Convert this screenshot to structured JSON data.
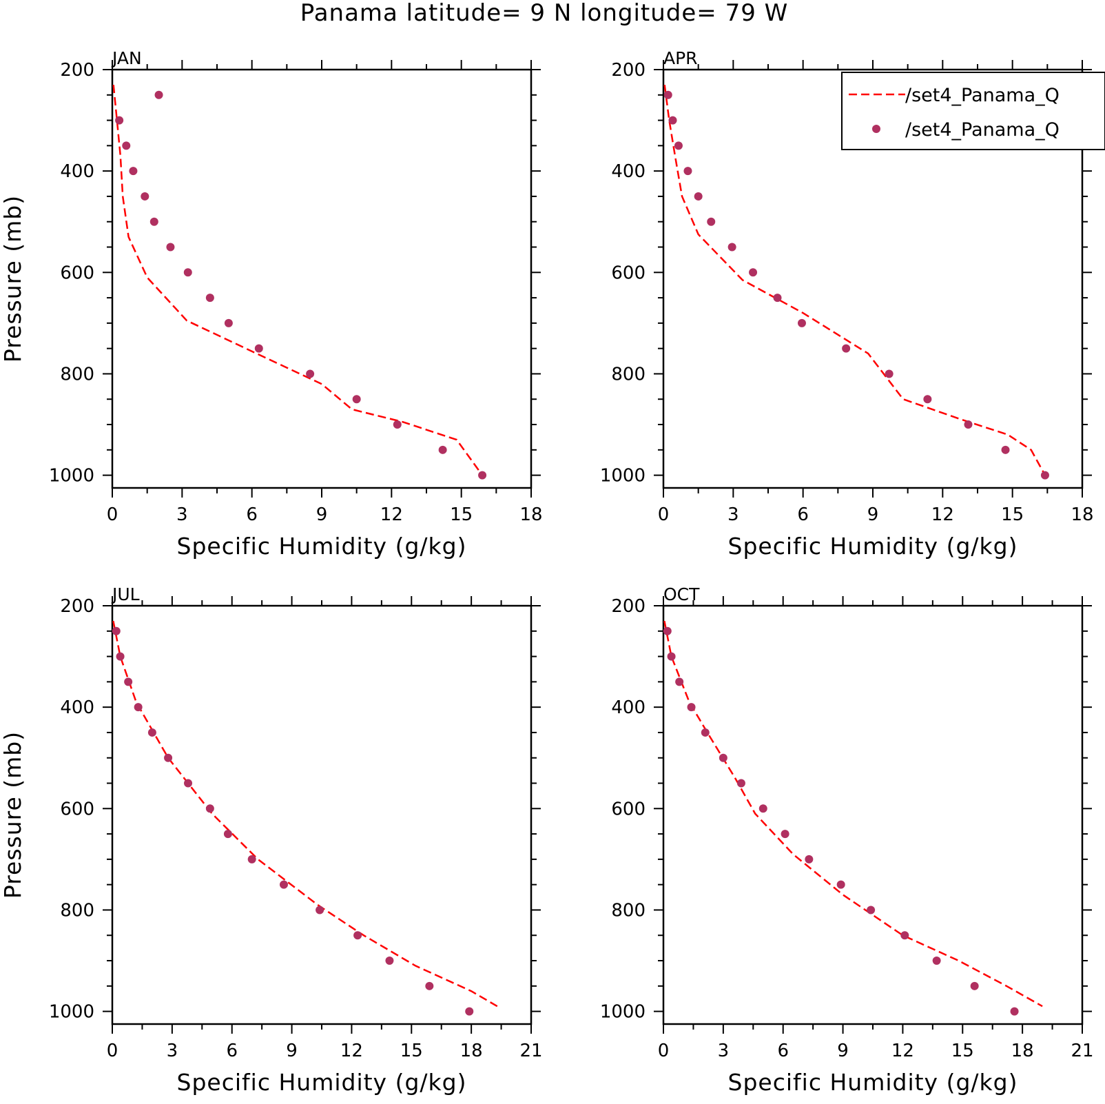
{
  "title": "Panama  latitude= 9 N longitude= 79 W",
  "colors": {
    "model_line": "#ff0000",
    "obs_marker": "#b03060",
    "axes": "#000000"
  },
  "legend": {
    "placement": "top-right of APR panel",
    "entries": [
      {
        "label": "/set4_Panama_Q",
        "style": "dashed-line"
      },
      {
        "label": "/set4_Panama_Q",
        "style": "marker"
      }
    ]
  },
  "chart_data": [
    {
      "type": "line",
      "panel_label": "JAN",
      "xlabel": "Specific Humidity (g/kg)",
      "ylabel": "Pressure (mb)",
      "xlim": [
        0,
        18
      ],
      "xticks": [
        0,
        3,
        6,
        9,
        12,
        15,
        18
      ],
      "ylim": [
        1000,
        200
      ],
      "yticks": [
        200,
        400,
        600,
        800,
        1000
      ],
      "series": [
        {
          "style": "dashed-line",
          "x": [
            0.05,
            0.2,
            0.35,
            0.45,
            0.7,
            1.5,
            3.2,
            6.2,
            9.0,
            10.3,
            12.5,
            14.8,
            15.9
          ],
          "y": [
            230,
            300,
            370,
            450,
            530,
            610,
            695,
            760,
            820,
            870,
            895,
            930,
            1000
          ]
        },
        {
          "style": "marker",
          "x": [
            2.0,
            0.3,
            0.6,
            0.9,
            1.4,
            1.8,
            2.5,
            3.25,
            4.2,
            5.0,
            6.3,
            8.5,
            10.5,
            12.25,
            14.2,
            15.9
          ],
          "y": [
            250,
            300,
            350,
            400,
            450,
            500,
            550,
            600,
            650,
            700,
            750,
            800,
            850,
            900,
            950,
            1000
          ]
        }
      ]
    },
    {
      "type": "line",
      "panel_label": "APR",
      "xlabel": "Specific Humidity (g/kg)",
      "ylabel": "",
      "xlim": [
        0,
        18
      ],
      "xticks": [
        0,
        3,
        6,
        9,
        12,
        15,
        18
      ],
      "ylim": [
        1000,
        200
      ],
      "yticks": [
        200,
        400,
        600,
        800,
        1000
      ],
      "series": [
        {
          "style": "dashed-line",
          "x": [
            0.05,
            0.25,
            0.5,
            0.8,
            1.5,
            3.4,
            6.0,
            8.8,
            10.3,
            12.8,
            14.8,
            15.8,
            16.4
          ],
          "y": [
            230,
            300,
            370,
            450,
            525,
            615,
            680,
            760,
            850,
            890,
            920,
            950,
            1000
          ]
        },
        {
          "style": "marker",
          "x": [
            0.2,
            0.4,
            0.65,
            1.05,
            1.5,
            2.05,
            2.95,
            3.85,
            4.9,
            5.95,
            7.85,
            9.7,
            11.35,
            13.1,
            14.7,
            16.4
          ],
          "y": [
            250,
            300,
            350,
            400,
            450,
            500,
            550,
            600,
            650,
            700,
            750,
            800,
            850,
            900,
            950,
            1000
          ]
        }
      ]
    },
    {
      "type": "line",
      "panel_label": "JUL",
      "xlabel": "Specific Humidity (g/kg)",
      "ylabel": "Pressure (mb)",
      "xlim": [
        0,
        21
      ],
      "xticks": [
        0,
        3,
        6,
        9,
        12,
        15,
        18,
        21
      ],
      "ylim": [
        1000,
        200
      ],
      "yticks": [
        200,
        400,
        600,
        800,
        1000
      ],
      "series": [
        {
          "style": "dashed-line",
          "x": [
            0.05,
            0.4,
            1.2,
            2.8,
            5.0,
            7.3,
            10.3,
            12.6,
            15.2,
            18.0,
            19.3
          ],
          "y": [
            230,
            300,
            390,
            500,
            610,
            700,
            790,
            850,
            910,
            960,
            990
          ]
        },
        {
          "style": "marker",
          "x": [
            0.2,
            0.4,
            0.8,
            1.3,
            2.0,
            2.8,
            3.8,
            4.9,
            5.8,
            7.0,
            8.6,
            10.4,
            12.3,
            13.9,
            15.9,
            17.9
          ],
          "y": [
            250,
            300,
            350,
            400,
            450,
            500,
            550,
            600,
            650,
            700,
            750,
            800,
            850,
            900,
            950,
            1000
          ]
        }
      ]
    },
    {
      "type": "line",
      "panel_label": "OCT",
      "xlabel": "Specific Humidity (g/kg)",
      "ylabel": "",
      "xlim": [
        0,
        21
      ],
      "xticks": [
        0,
        3,
        6,
        9,
        12,
        15,
        18,
        21
      ],
      "ylim": [
        1000,
        200
      ],
      "yticks": [
        200,
        400,
        600,
        800,
        1000
      ],
      "series": [
        {
          "style": "dashed-line",
          "x": [
            0.05,
            0.4,
            1.3,
            2.2,
            3.6,
            4.6,
            6.5,
            9.0,
            12.0,
            14.8,
            17.2,
            19.0
          ],
          "y": [
            230,
            300,
            390,
            450,
            540,
            610,
            690,
            770,
            850,
            900,
            950,
            990
          ]
        },
        {
          "style": "marker",
          "x": [
            0.2,
            0.4,
            0.8,
            1.4,
            2.1,
            3.0,
            3.9,
            5.0,
            6.1,
            7.3,
            8.9,
            10.4,
            12.1,
            13.7,
            15.6,
            17.6
          ],
          "y": [
            250,
            300,
            350,
            400,
            450,
            500,
            550,
            600,
            650,
            700,
            750,
            800,
            850,
            900,
            950,
            1000
          ]
        }
      ]
    }
  ]
}
